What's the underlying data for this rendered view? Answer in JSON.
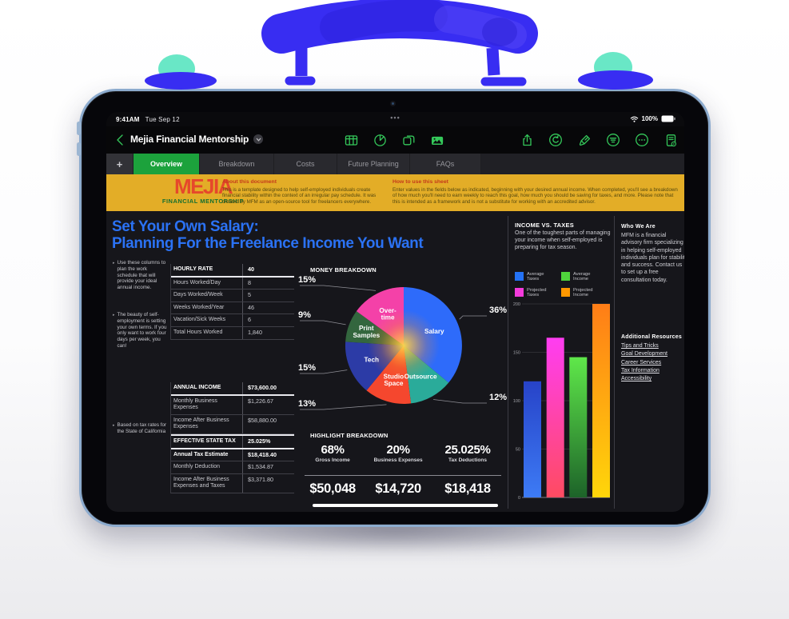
{
  "colors": {
    "accent_green": "#34c85a",
    "tab_selected_green": "#1ca23c",
    "banner_yellow": "#e3ad27",
    "logo_red": "#e6482b",
    "logo_green": "#156f2f",
    "title_blue": "#2b72f4",
    "screen_bg": "#16161b",
    "paint_blue": "#382df2",
    "paint_mint": "#69e7c6",
    "frame_blue": "#8cabce"
  },
  "status_bar": {
    "time": "9:41AM",
    "date": "Tue Sep 12",
    "battery": "100%",
    "multitask_dots": "•••"
  },
  "toolbar": {
    "title": "Mejia Financial Mentorship",
    "insert_icons": [
      "table-icon",
      "chart-icon",
      "shapes-icon",
      "media-icon"
    ],
    "action_icons": [
      "share-icon",
      "undo-icon",
      "format-brush-icon",
      "filter-icon",
      "more-icon",
      "document-options-icon"
    ]
  },
  "tabs": {
    "add_label": "+",
    "items": [
      {
        "label": "Overview",
        "selected": true
      },
      {
        "label": "Breakdown",
        "selected": false
      },
      {
        "label": "Costs",
        "selected": false
      },
      {
        "label": "Future Planning",
        "selected": false
      },
      {
        "label": "FAQs",
        "selected": false
      }
    ]
  },
  "banner": {
    "logo_title": "MEJIA",
    "logo_subtitle": "FINANCIAL MENTORSHIP",
    "about": {
      "heading": "About this document",
      "body": "This is a template designed to help self-employed individuals create financial stability within the context of an irregular pay schedule. It was created by MFM as an open-source tool for freelancers everywhere."
    },
    "howto": {
      "heading": "How to use this sheet",
      "body": "Enter values in the fields below as indicated, beginning with your desired annual income. When completed, you'll see a breakdown of how much you'll need to earn weekly to reach this goal, how much you should be saving for taxes, and more. Please note that this is intended as a framework and is not a substitute for working with an accredited advisor."
    }
  },
  "sheet": {
    "title_line1": "Set Your Own Salary:",
    "title_line2": "Planning For the Freelance Income You Want",
    "notes": [
      "Use these columns to plan the work schedule that will provide your ideal annual income.",
      "The beauty of self-employment is setting your own terms. If you only want to work four days per week, you can!",
      "Based on tax rates for the State of California"
    ],
    "hourly_table": {
      "rows": [
        {
          "label": "HOURLY RATE",
          "value": "40"
        },
        {
          "label": "Hours Worked/Day",
          "value": "8"
        },
        {
          "label": "Days Worked/Week",
          "value": "5"
        },
        {
          "label": "Weeks Worked/Year",
          "value": "46"
        },
        {
          "label": "Vacation/Sick Weeks",
          "value": "6"
        },
        {
          "label": "Total Hours Worked",
          "value": "1,840"
        }
      ]
    },
    "income_table": {
      "rows": [
        {
          "label": "ANNUAL INCOME",
          "value": "$73,600.00"
        },
        {
          "label": "Monthly Business Expenses",
          "value": "$1,226.67"
        },
        {
          "label": "Income After Business Expenses",
          "value": "$58,880.00"
        },
        {
          "label": "EFFECTIVE STATE TAX",
          "value": "25.025%"
        },
        {
          "label": "Annual Tax Estimate",
          "value": "$18,418.40"
        },
        {
          "label": "Monthly Deduction",
          "value": "$1,534.87"
        },
        {
          "label": "Income After Business Expenses and Taxes",
          "value": "$3,371.80"
        }
      ]
    },
    "money_breakdown_heading": "MONEY BREAKDOWN",
    "highlight": {
      "heading": "HIGHLIGHT BREAKDOWN",
      "stats": [
        {
          "pct": "68%",
          "label": "Gross Income",
          "amount": "$50,048"
        },
        {
          "pct": "20%",
          "label": "Business Expenses",
          "amount": "$14,720"
        },
        {
          "pct": "25.025%",
          "label": "Tax Deductions",
          "amount": "$18,418"
        }
      ]
    },
    "income_vs_taxes": {
      "heading": "INCOME VS. TAXES",
      "body": "One of the toughest parts of managing your income when self-employed is preparing for tax season.",
      "legend": [
        {
          "line1": "Average",
          "line2": "Taxes",
          "color": "#2472f5"
        },
        {
          "line1": "Average",
          "line2": "Income",
          "color": "#4fd43c"
        },
        {
          "line1": "Projected",
          "line2": "Taxes",
          "color": "#f43bdc"
        },
        {
          "line1": "Projected",
          "line2": "Income",
          "color": "#ff9800"
        }
      ]
    },
    "who_we_are": {
      "heading": "Who We Are",
      "body": "MFM is a financial advisory firm specializing in helping self-employed individuals plan for stability and success. Contact us to set up a free consultation today."
    },
    "resources": {
      "heading": "Additional Resources",
      "links": [
        "Tips and Tricks",
        "Goal Development",
        "Career Services",
        "Tax Information",
        "Accessibility"
      ]
    }
  },
  "chart_data": [
    {
      "type": "pie",
      "title": "MONEY BREAKDOWN",
      "slices": [
        {
          "label": "Salary",
          "label_lines": [
            "Salary"
          ],
          "pct": 36,
          "pct_label": "36%",
          "color": "#2e6bfa"
        },
        {
          "label": "Outsource",
          "label_lines": [
            "Outsource"
          ],
          "pct": 12,
          "pct_label": "12%",
          "color": "#2aab9a"
        },
        {
          "label": "Studio Space",
          "label_lines": [
            "Studio",
            "Space"
          ],
          "pct": 13,
          "pct_label": "13%",
          "color": "#f5472e"
        },
        {
          "label": "Tech",
          "label_lines": [
            "Tech"
          ],
          "pct": 15,
          "pct_label": "15%",
          "color": "#2c3ba6"
        },
        {
          "label": "Print Samples",
          "label_lines": [
            "Print",
            "Samples"
          ],
          "pct": 9,
          "pct_label": "9%",
          "color": "#33663e"
        },
        {
          "label": "Over-time",
          "label_lines": [
            "Over-",
            "time"
          ],
          "pct": 15,
          "pct_label": "15%",
          "color": "#f441a8"
        }
      ]
    },
    {
      "type": "bar",
      "title": "INCOME VS. TAXES",
      "categories": [
        "Average Taxes",
        "Projected Taxes",
        "Average Income",
        "Projected Income"
      ],
      "values": [
        120,
        165,
        145,
        200
      ],
      "bar_gradients": [
        [
          "#2743c8",
          "#3d7bf5"
        ],
        [
          "#ff3df2",
          "#ff4b61"
        ],
        [
          "#5fe84a",
          "#1d6329"
        ],
        [
          "#ff7d17",
          "#ffd60a"
        ]
      ],
      "ylim": [
        0,
        200
      ],
      "yticks": [
        0,
        50,
        100,
        150,
        200
      ],
      "grid": true,
      "legend_position": "above"
    }
  ]
}
